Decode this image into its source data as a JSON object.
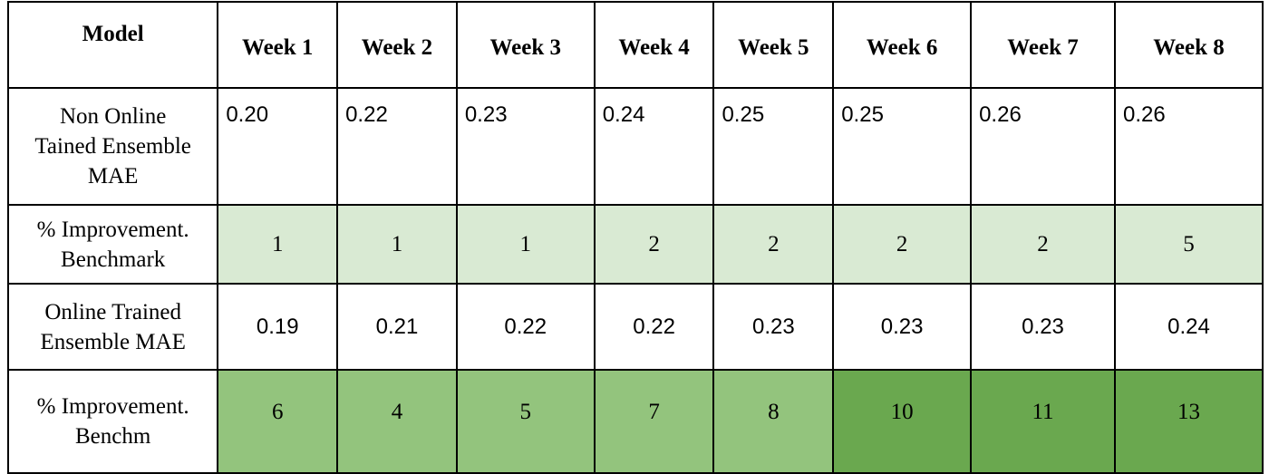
{
  "header": {
    "model_label": "Model",
    "weeks": [
      "Week 1",
      "Week 2",
      "Week 3",
      "Week 4",
      "Week 5",
      "Week 6",
      "Week 7",
      "Week 8"
    ]
  },
  "rows": [
    {
      "label_lines": [
        "Non Online",
        "Tained Ensemble",
        "MAE"
      ],
      "values": [
        "0.20",
        "0.22",
        "0.23",
        "0.24",
        "0.25",
        "0.25",
        "0.26",
        "0.26"
      ]
    },
    {
      "label_lines": [
        "% Improvement.",
        "Benchmark"
      ],
      "values": [
        "1",
        "1",
        "1",
        "2",
        "2",
        "2",
        "2",
        "5"
      ],
      "fill_color": "#d9ead3"
    },
    {
      "label_lines": [
        "Online Trained",
        "Ensemble MAE"
      ],
      "values": [
        "0.19",
        "0.21",
        "0.22",
        "0.22",
        "0.23",
        "0.23",
        "0.23",
        "0.24"
      ]
    },
    {
      "label_lines": [
        "% Improvement.",
        "Benchm"
      ],
      "values": [
        "6",
        "4",
        "5",
        "7",
        "8",
        "10",
        "11",
        "13"
      ],
      "fill_colors": [
        "#93c47d",
        "#93c47d",
        "#93c47d",
        "#93c47d",
        "#93c47d",
        "#6aa84f",
        "#6aa84f",
        "#6aa84f"
      ]
    }
  ]
}
